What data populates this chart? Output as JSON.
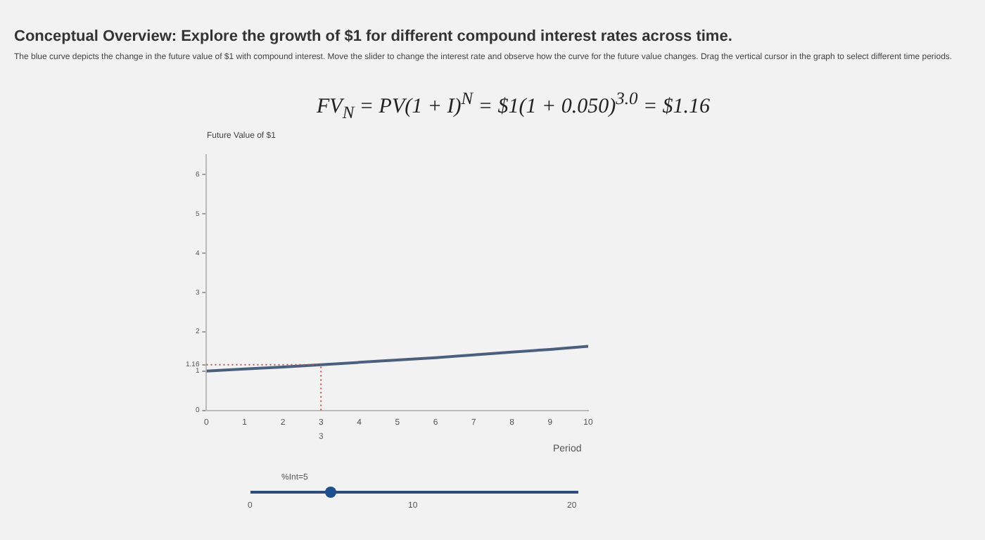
{
  "chart_data": {
    "type": "line",
    "title": "Conceptual Overview: Explore the growth of $1 for different compound interest rates across time.",
    "annotations": [
      "The blue curve depicts the change in the future value of $1 with compound interest. Move the slider to change the interest rate and observe how the curve for the future value changes. Drag the vertical cursor in the graph to select different time periods.",
      "FV$_{N}$ = PV(1 + I)$^{N}$ = $1(1 + 0.050)$^{3.0}$ = $1.16",
      "%Int=5",
      "0",
      "10",
      "20"
    ],
    "ylabel": "Future Value of $1",
    "xlabel": "Period",
    "x": [
      0,
      1,
      2,
      3,
      4,
      5,
      6,
      7,
      8,
      9,
      10
    ],
    "series": [
      {
        "color": "#4a5f7e",
        "values": [
          1,
          1.05,
          1.1,
          1.16,
          1.22,
          1.28,
          1.34,
          1.41,
          1.48,
          1.55,
          1.63
        ]
      }
    ],
    "xlim": [
      0,
      10
    ],
    "xticks": [
      0,
      1,
      2,
      3,
      4,
      5,
      6,
      7,
      8,
      9,
      10
    ],
    "ylim": [
      0,
      6.5
    ],
    "yticks": [
      0,
      1,
      {
        "value": 1.16,
        "label": "1.16"
      },
      2,
      3,
      4,
      5,
      6
    ],
    "ref_lines": [
      {
        "axis": "x",
        "value": 3,
        "label": "3",
        "color": "#c0504d",
        "line_style": "dotted"
      },
      {
        "axis": "y",
        "value": 1.16,
        "color": "#c0504d",
        "line_style": "dotted"
      }
    ],
    "grid": false,
    "legend": false,
    "marker": "none",
    "line_style": "solid"
  }
}
